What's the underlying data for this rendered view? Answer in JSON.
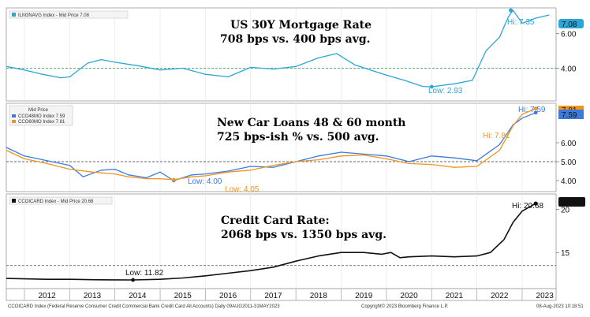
{
  "chart_data": [
    {
      "type": "line",
      "legend": "ILM3NAVG Index - Mid Price 7.08",
      "title_line1": "US 30Y Mortgage Rate",
      "title_line2": "708 bps vs. 400 bps avg.",
      "ylim": [
        2.2,
        7.4
      ],
      "yticks": [
        "6.00",
        "4.00"
      ],
      "ytick_values": [
        6,
        4
      ],
      "avg": 4.0,
      "last_label": "7.08",
      "hi_label": "Hi: 7.35",
      "hi_point": [
        2022.75,
        7.35
      ],
      "low_label": "Low: 2.93",
      "low_point": [
        2021.0,
        2.93
      ],
      "series": [
        {
          "color": "#2aa7d6",
          "x": [
            2011.6,
            2012.0,
            2012.4,
            2012.8,
            2013.0,
            2013.4,
            2013.7,
            2014.0,
            2014.5,
            2015.0,
            2015.5,
            2016.0,
            2016.5,
            2017.0,
            2017.5,
            2018.0,
            2018.5,
            2018.9,
            2019.3,
            2019.7,
            2020.0,
            2020.4,
            2020.8,
            2021.0,
            2021.5,
            2021.9,
            2022.2,
            2022.5,
            2022.7,
            2022.8,
            2023.0,
            2023.3,
            2023.6
          ],
          "y": [
            4.1,
            3.9,
            3.65,
            3.45,
            3.5,
            4.3,
            4.5,
            4.35,
            4.15,
            3.9,
            4.0,
            3.65,
            3.5,
            4.05,
            3.95,
            4.1,
            4.6,
            4.85,
            4.2,
            3.85,
            3.6,
            3.3,
            2.95,
            2.93,
            3.1,
            3.3,
            5.0,
            5.8,
            7.0,
            7.35,
            6.6,
            6.9,
            7.08
          ]
        }
      ]
    },
    {
      "type": "line",
      "legend_title": "Mid Price",
      "title_line1": "New Car Loans 48 & 60 month",
      "title_line2": "725 bps-ish % vs. 500 avg.",
      "ylim": [
        3.5,
        8.0
      ],
      "yticks": [
        "6.00",
        "5.00",
        "4.00"
      ],
      "ytick_values": [
        6,
        5,
        4
      ],
      "avg": 5.0,
      "hi_labels": [
        "Hi: 7.81",
        "Hi: 7.59"
      ],
      "low_labels": [
        "Low: 4.00",
        "Low: 4.05"
      ],
      "low_points": [
        [
          2015.3,
          4.0
        ],
        [
          2015.3,
          4.05
        ]
      ],
      "last_labels": [
        "7.81",
        "7.59"
      ],
      "series": [
        {
          "name": "CCO48MO Index 7.59",
          "color": "#3b7be0",
          "x": [
            2011.6,
            2012.0,
            2012.5,
            2013.0,
            2013.3,
            2013.7,
            2014.0,
            2014.3,
            2014.7,
            2015.0,
            2015.3,
            2015.7,
            2016.0,
            2016.5,
            2017.0,
            2017.5,
            2018.0,
            2018.5,
            2019.0,
            2019.5,
            2020.0,
            2020.5,
            2021.0,
            2021.5,
            2022.0,
            2022.5,
            2022.8,
            2023.0,
            2023.3
          ],
          "y": [
            5.75,
            5.3,
            5.05,
            4.8,
            4.2,
            4.55,
            4.6,
            4.3,
            4.15,
            4.45,
            4.0,
            4.3,
            4.35,
            4.5,
            4.75,
            4.7,
            5.0,
            5.3,
            5.5,
            5.4,
            5.3,
            5.0,
            5.3,
            5.2,
            5.05,
            5.9,
            6.95,
            7.3,
            7.59
          ]
        },
        {
          "name": "CCO60MO Index 7.81",
          "color": "#f0941e",
          "x": [
            2011.6,
            2012.0,
            2012.5,
            2013.0,
            2013.5,
            2014.0,
            2014.3,
            2014.7,
            2015.0,
            2015.3,
            2015.7,
            2016.0,
            2016.5,
            2017.0,
            2017.5,
            2018.0,
            2018.5,
            2019.0,
            2019.5,
            2020.0,
            2020.5,
            2021.0,
            2021.5,
            2022.0,
            2022.5,
            2022.8,
            2023.0,
            2023.3
          ],
          "y": [
            5.6,
            5.15,
            4.9,
            4.6,
            4.45,
            4.35,
            4.2,
            4.1,
            4.1,
            4.05,
            4.2,
            4.25,
            4.45,
            4.55,
            4.8,
            5.0,
            5.1,
            5.3,
            5.35,
            5.15,
            4.9,
            4.85,
            4.7,
            4.75,
            5.6,
            6.9,
            7.5,
            7.81
          ]
        }
      ]
    },
    {
      "type": "line",
      "legend": "CCOICARD Index - Mid Price 20.68",
      "title_line1": "Credit Card Rate:",
      "title_line2": "2068 bps vs. 1350 bps avg.",
      "ylim": [
        11.0,
        21.6
      ],
      "yticks": [
        "20",
        "15"
      ],
      "ytick_values": [
        20,
        15
      ],
      "avg": 13.5,
      "last_label": "20.68",
      "hi_label": "Hi: 20.68",
      "hi_point": [
        2023.3,
        20.68
      ],
      "low_label": "Low: 11.82",
      "low_point": [
        2014.4,
        11.82
      ],
      "series": [
        {
          "color": "#111111",
          "x": [
            2011.6,
            2012.0,
            2012.5,
            2013.0,
            2013.5,
            2014.0,
            2014.4,
            2015.0,
            2015.5,
            2016.0,
            2016.5,
            2017.0,
            2017.5,
            2018.0,
            2018.5,
            2019.0,
            2019.5,
            2019.9,
            2020.1,
            2020.3,
            2020.5,
            2021.0,
            2021.5,
            2022.0,
            2022.3,
            2022.6,
            2022.8,
            2023.0,
            2023.3
          ],
          "y": [
            12.0,
            11.95,
            11.9,
            11.9,
            11.85,
            11.83,
            11.82,
            11.9,
            12.05,
            12.3,
            12.6,
            12.9,
            13.3,
            14.0,
            14.6,
            15.0,
            15.0,
            14.8,
            15.0,
            14.4,
            14.5,
            14.6,
            14.5,
            14.6,
            15.0,
            16.5,
            18.5,
            19.8,
            20.68
          ]
        }
      ]
    }
  ],
  "x_axis": {
    "labels": [
      "2012",
      "2013",
      "2014",
      "2015",
      "2016",
      "2017",
      "2018",
      "2019",
      "2020",
      "2021",
      "2022",
      "2023"
    ],
    "xmin": 2011.6,
    "xmax": 2023.75
  },
  "footer": {
    "left": "CCOICARD Index (Federal Reserve Consumer Credit Commercial Bank Credit Card All Accounts)  Daily 09AUG2011-31MAY2023",
    "center": "Copyright© 2023 Bloomberg Finance L.P.",
    "right": "08-Aug-2023 10:18:51"
  },
  "colors": {
    "mortgage": "#2aa7d6",
    "car48": "#3b7be0",
    "car60": "#f0941e",
    "card": "#111111",
    "avg_mortgage": "#3aa860"
  }
}
